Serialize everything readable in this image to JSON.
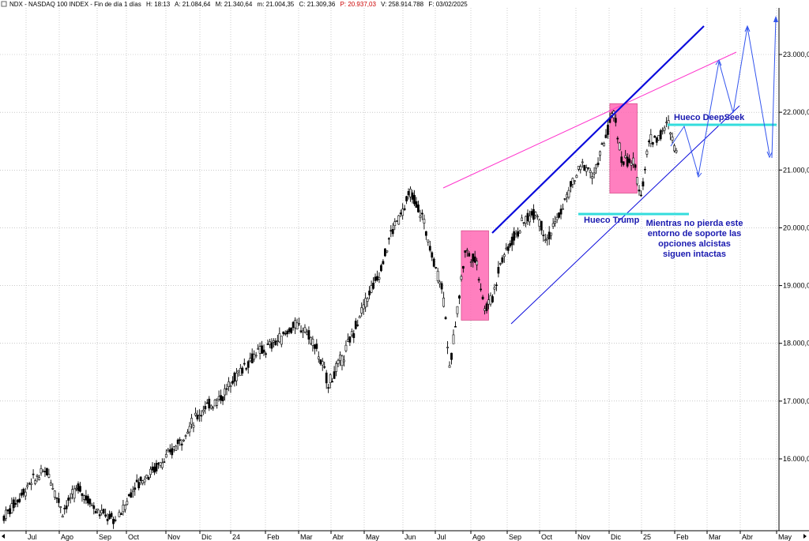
{
  "header": {
    "symbol": "NDX - NASDAQ 100 INDEX - Fin de día 1 días",
    "time": "H: 18:13",
    "a": "A: 21.084,64",
    "m_max": "M: 21.340,64",
    "m_min": "m: 21.004,35",
    "c": "C: 21.309,36",
    "p": "P: 20.937,03",
    "v": "V: 258.914.788",
    "f": "F: 03/02/2025"
  },
  "colors": {
    "pink_box": "#ff69b4",
    "blue_trend": "#0a0adc",
    "magenta_line": "#ff33cc",
    "cyan_line": "#33dddd",
    "projection": "#3355ee",
    "label_blue": "#1a1ab0",
    "header_red": "#cc0000"
  },
  "chart_data": {
    "type": "candlestick",
    "y_ticks": [
      "16.000,0",
      "17.000,0",
      "18.000,0",
      "19.000,0",
      "20.000,0",
      "21.000,0",
      "22.000,0",
      "23.000,0"
    ],
    "x_ticks": [
      "Jul",
      "Ago",
      "Sep",
      "Oct",
      "Nov",
      "Dic",
      "24",
      "Feb",
      "Mar",
      "Abr",
      "May",
      "Jun",
      "Jul",
      "Ago",
      "Sep",
      "Oct",
      "Nov",
      "Dic",
      "25",
      "Feb",
      "Mar",
      "Abr",
      "May"
    ],
    "price_path": [
      [
        0,
        15000
      ],
      [
        7,
        15600
      ],
      [
        11,
        15800
      ],
      [
        15,
        15100
      ],
      [
        19,
        15500
      ],
      [
        24,
        15100
      ],
      [
        29,
        14900
      ],
      [
        33,
        15500
      ],
      [
        38,
        15800
      ],
      [
        42,
        16050
      ],
      [
        46,
        16400
      ],
      [
        50,
        16800
      ],
      [
        54,
        17000
      ],
      [
        56,
        17100
      ],
      [
        60,
        17500
      ],
      [
        64,
        17800
      ],
      [
        67,
        17900
      ],
      [
        71,
        18100
      ],
      [
        74,
        18300
      ],
      [
        77,
        18250
      ],
      [
        80,
        17900
      ],
      [
        83,
        17300
      ],
      [
        87,
        17800
      ],
      [
        90,
        18300
      ],
      [
        93,
        18800
      ],
      [
        96,
        19200
      ],
      [
        99,
        19900
      ],
      [
        102,
        20300
      ],
      [
        104,
        20600
      ],
      [
        107,
        20200
      ],
      [
        110,
        19400
      ],
      [
        112,
        19000
      ],
      [
        113,
        18500
      ],
      [
        114,
        17500
      ],
      [
        116,
        18600
      ],
      [
        118,
        19600
      ],
      [
        121,
        19400
      ],
      [
        123,
        18600
      ],
      [
        125,
        18800
      ],
      [
        127,
        19400
      ],
      [
        130,
        19800
      ],
      [
        133,
        20100
      ],
      [
        136,
        20300
      ],
      [
        139,
        19800
      ],
      [
        142,
        20200
      ],
      [
        145,
        20700
      ],
      [
        148,
        21100
      ],
      [
        151,
        20900
      ],
      [
        154,
        21600
      ],
      [
        156,
        22000
      ],
      [
        158,
        21200
      ],
      [
        161,
        21100
      ],
      [
        163,
        20600
      ],
      [
        165,
        21500
      ],
      [
        168,
        21600
      ],
      [
        170,
        21800
      ],
      [
        172,
        21300
      ]
    ],
    "last_day_index": 172,
    "annotations": [
      {
        "id": "hueco_deepseek",
        "text": "Hueco DeepSeek",
        "level": 21800
      },
      {
        "id": "hueco_trump",
        "text": "Hueco Trump",
        "level": 20250
      },
      {
        "id": "comment",
        "lines": [
          "Mientras no pierda este",
          "entorno de soporte las",
          "opciones alcistas",
          "siguen intactas"
        ]
      }
    ],
    "highlight_boxes": [
      {
        "from_index": 117,
        "to_index": 124,
        "y_top": 19950,
        "y_bottom": 18400
      },
      {
        "from_index": 155,
        "to_index": 162,
        "y_top": 22150,
        "y_bottom": 20600
      }
    ]
  }
}
